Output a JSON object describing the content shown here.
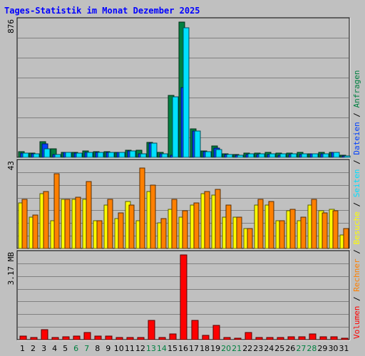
{
  "title": "Tages-Statistik im Monat Dezember 2025",
  "colors": {
    "background": "#c0c0c0",
    "title": "#0000ff",
    "grid": "#808080",
    "anfragen": "#008040",
    "dateien": "#0040ff",
    "seiten": "#00e0ff",
    "besuche": "#ffff00",
    "rechner": "#ff8000",
    "volumen": "#ff0000",
    "weekend_label": "#008040"
  },
  "chart_data": [
    {
      "type": "bar",
      "panel": "hits",
      "max_label": "876",
      "ylim": [
        0,
        876
      ],
      "categories": [
        "1",
        "2",
        "3",
        "4",
        "5",
        "6",
        "7",
        "8",
        "9",
        "10",
        "11",
        "12",
        "13",
        "14",
        "15",
        "16",
        "17",
        "18",
        "19",
        "20",
        "21",
        "22",
        "23",
        "24",
        "25",
        "26",
        "27",
        "28",
        "29",
        "30",
        "31"
      ],
      "weekend_days": [
        "6",
        "7",
        "13",
        "14",
        "20",
        "21",
        "27",
        "28"
      ],
      "series": [
        {
          "name": "Anfragen",
          "values": [
            36,
            27,
            102,
            54,
            33,
            30,
            40,
            35,
            35,
            33,
            45,
            48,
            95,
            30,
            402,
            876,
            183,
            40,
            75,
            24,
            18,
            27,
            27,
            30,
            27,
            27,
            33,
            25,
            30,
            33,
            14
          ]
        },
        {
          "name": "Dateien",
          "values": [
            27,
            22,
            87,
            20,
            30,
            28,
            33,
            30,
            30,
            30,
            40,
            25,
            90,
            25,
            15,
            450,
            170,
            35,
            60,
            20,
            15,
            20,
            20,
            20,
            15,
            20,
            20,
            25,
            25,
            30,
            10
          ]
        },
        {
          "name": "Seiten",
          "values": [
            27,
            22,
            54,
            20,
            30,
            28,
            30,
            30,
            30,
            30,
            40,
            25,
            90,
            25,
            390,
            840,
            170,
            35,
            52,
            20,
            15,
            22,
            22,
            24,
            22,
            24,
            22,
            25,
            25,
            30,
            10
          ]
        }
      ],
      "legend": [
        "Anfragen",
        "Dateien",
        "Seiten"
      ]
    },
    {
      "type": "bar",
      "panel": "visits",
      "max_label": "43",
      "ylim": [
        0,
        43
      ],
      "categories": [
        "1",
        "2",
        "3",
        "4",
        "5",
        "6",
        "7",
        "8",
        "9",
        "10",
        "11",
        "12",
        "13",
        "14",
        "15",
        "16",
        "17",
        "18",
        "19",
        "20",
        "21",
        "22",
        "23",
        "24",
        "25",
        "26",
        "27",
        "28",
        "29",
        "30",
        "31"
      ],
      "series": [
        {
          "name": "Besuche",
          "values": [
            23,
            16,
            28,
            14,
            25,
            25,
            25,
            14,
            22,
            15,
            24,
            14,
            29,
            13,
            20,
            16,
            22,
            28,
            27,
            16,
            16,
            10,
            22,
            22,
            14,
            19,
            14,
            22,
            19,
            20,
            7
          ]
        },
        {
          "name": "Rechner",
          "values": [
            25,
            17,
            29,
            38,
            25,
            26,
            34,
            14,
            25,
            18,
            22,
            41,
            32,
            15,
            25,
            19,
            23,
            29,
            30,
            22,
            16,
            10,
            25,
            24,
            14,
            20,
            16,
            25,
            18,
            19,
            10
          ]
        }
      ],
      "legend": [
        "Besuche",
        "Rechner"
      ]
    },
    {
      "type": "bar",
      "panel": "volume",
      "max_label": "3.17 MB",
      "ylim": [
        0,
        3.17
      ],
      "unit": "MB",
      "categories": [
        "1",
        "2",
        "3",
        "4",
        "5",
        "6",
        "7",
        "8",
        "9",
        "10",
        "11",
        "12",
        "13",
        "14",
        "15",
        "16",
        "17",
        "18",
        "19",
        "20",
        "21",
        "22",
        "23",
        "24",
        "25",
        "26",
        "27",
        "28",
        "29",
        "30",
        "31"
      ],
      "series": [
        {
          "name": "Volumen",
          "values": [
            0.12,
            0.08,
            0.36,
            0.08,
            0.1,
            0.12,
            0.27,
            0.12,
            0.12,
            0.08,
            0.08,
            0.08,
            0.72,
            0.08,
            0.22,
            3.17,
            0.71,
            0.15,
            0.52,
            0.08,
            0.04,
            0.26,
            0.08,
            0.08,
            0.08,
            0.1,
            0.1,
            0.21,
            0.1,
            0.1,
            0.04
          ]
        }
      ],
      "legend": [
        "Volumen"
      ]
    }
  ]
}
